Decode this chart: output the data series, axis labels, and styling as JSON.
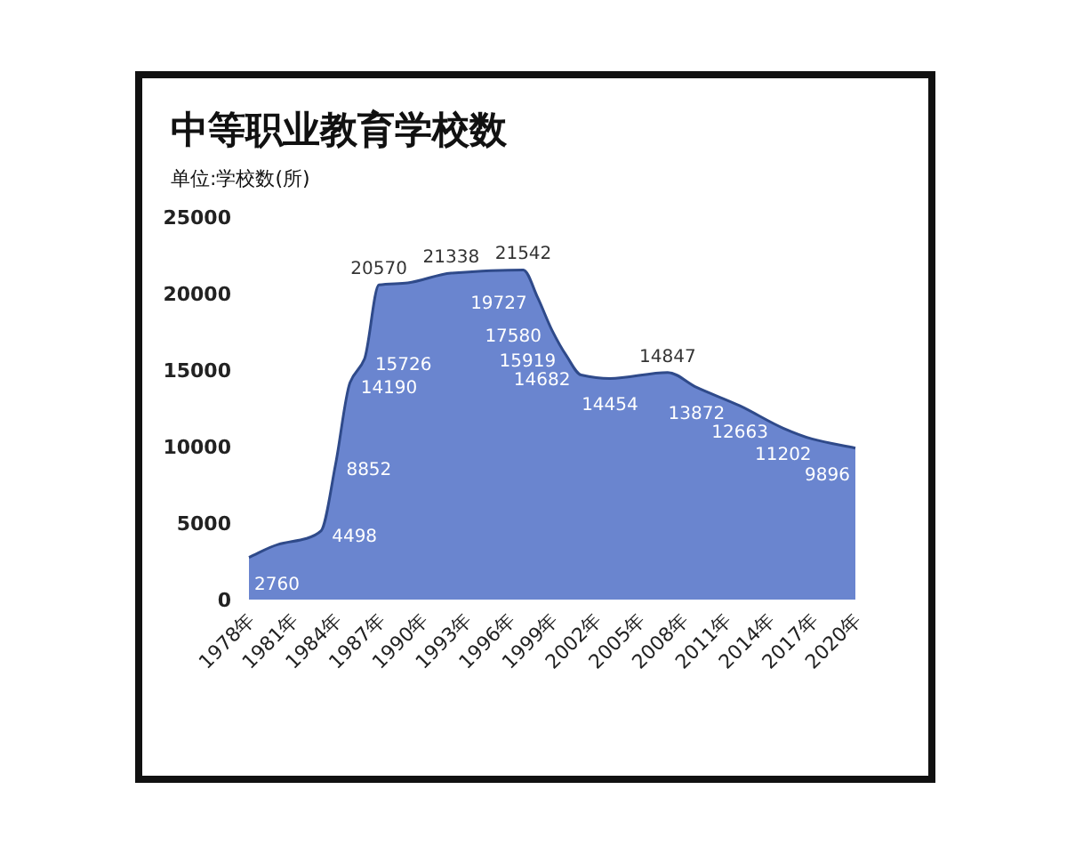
{
  "chart_data": {
    "type": "area",
    "title": "中等职业教育学校数",
    "subtitle": "单位:学校数(所)",
    "color": "#6a85cf",
    "x": [
      1978,
      1980,
      1982,
      1983,
      1984,
      1985,
      1986,
      1987,
      1989,
      1992,
      1997,
      1998,
      1999,
      2000,
      2001,
      2003,
      2007,
      2009,
      2012,
      2015,
      2017,
      2020
    ],
    "values": [
      2760,
      3600,
      4000,
      4498,
      8852,
      14190,
      15726,
      20570,
      20700,
      21338,
      21542,
      19727,
      17580,
      15919,
      14682,
      14454,
      14847,
      13872,
      12663,
      11202,
      10500,
      9896
    ],
    "value_labels": [
      "2760",
      null,
      null,
      "4498",
      "8852",
      "14190",
      "15726",
      "20570",
      null,
      "21338",
      "21542",
      "19727",
      "17580",
      "15919",
      "14682",
      "14454",
      "14847",
      "13872",
      "12663",
      "11202",
      null,
      "9896"
    ],
    "xlim": [
      1978,
      2020
    ],
    "xticks": [
      {
        "value": 1978,
        "label": "1978年"
      },
      {
        "value": 1981,
        "label": "1981年"
      },
      {
        "value": 1984,
        "label": "1984年"
      },
      {
        "value": 1987,
        "label": "1987年"
      },
      {
        "value": 1990,
        "label": "1990年"
      },
      {
        "value": 1993,
        "label": "1993年"
      },
      {
        "value": 1996,
        "label": "1996年"
      },
      {
        "value": 1999,
        "label": "1999年"
      },
      {
        "value": 2002,
        "label": "2002年"
      },
      {
        "value": 2005,
        "label": "2005年"
      },
      {
        "value": 2008,
        "label": "2008年"
      },
      {
        "value": 2011,
        "label": "2011年"
      },
      {
        "value": 2014,
        "label": "2014年"
      },
      {
        "value": 2017,
        "label": "2017年"
      },
      {
        "value": 2020,
        "label": "2020年"
      }
    ],
    "ylim": [
      0,
      25000
    ],
    "yticks": [
      0,
      5000,
      10000,
      15000,
      20000,
      25000
    ],
    "grid": false
  }
}
